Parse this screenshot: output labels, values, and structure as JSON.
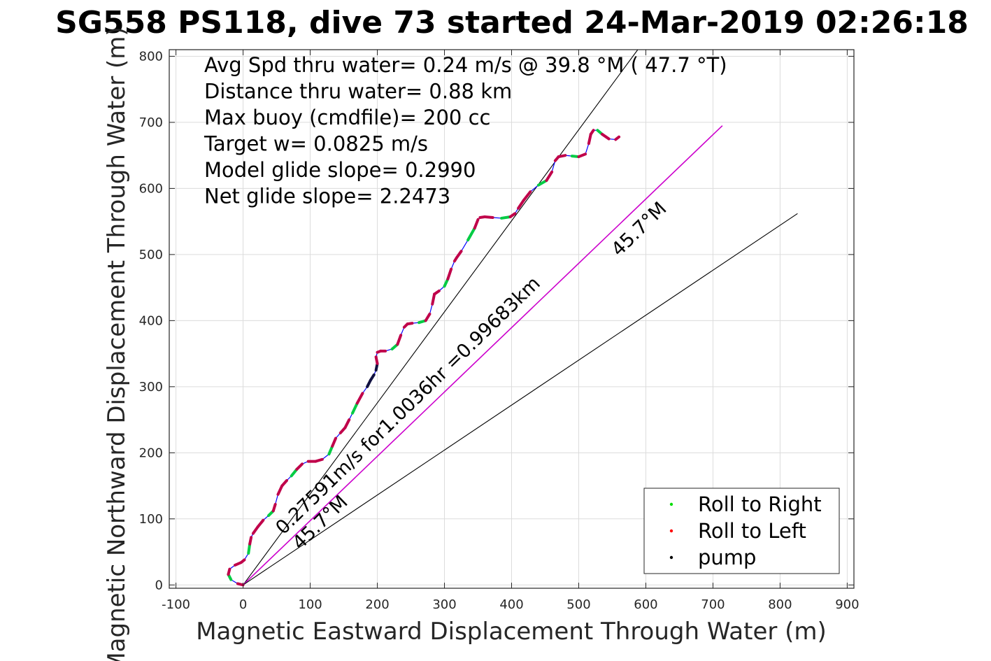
{
  "chart_data": {
    "type": "line",
    "title": "SG558 PS118, dive 73 started 24-Mar-2019 02:26:18",
    "xlabel": "Magnetic Eastward Displacement Through Water (m)",
    "ylabel": "Magnetic Northward Displacement Through Water (m)",
    "xlim": [
      -110,
      910
    ],
    "ylim": [
      -5,
      810
    ],
    "xticks": [
      -100,
      0,
      100,
      200,
      300,
      400,
      500,
      600,
      700,
      800,
      900
    ],
    "xtick_labels": [
      "-100",
      "0",
      "100",
      "200",
      "300",
      "400",
      "500",
      "600",
      "700",
      "800",
      "900"
    ],
    "yticks": [
      0,
      100,
      200,
      300,
      400,
      500,
      600,
      700,
      800
    ],
    "ytick_labels": [
      "0",
      "100",
      "200",
      "300",
      "400",
      "500",
      "600",
      "700",
      "800"
    ],
    "grid": true,
    "stats": [
      "Avg Spd thru water=  0.24 m/s @  39.8 °M ( 47.7 °T)",
      "Distance thru water=  0.88 km",
      "Max buoy (cmdfile)= 200 cc",
      "Target w= 0.0825 m/s",
      "Model glide slope= 0.2990",
      "Net glide slope= 2.2473"
    ],
    "reference_lines": [
      {
        "name": "upper",
        "x": [
          0,
          588
        ],
        "y": [
          0,
          810
        ],
        "color": "#000000"
      },
      {
        "name": "center",
        "x": [
          0,
          714
        ],
        "y": [
          0,
          695
        ],
        "color": "#cc00cc"
      },
      {
        "name": "lower",
        "x": [
          0,
          826
        ],
        "y": [
          0,
          562
        ],
        "color": "#000000"
      }
    ],
    "annotations": [
      {
        "text": "0.27591m/s for1.0036hr =0.99683km",
        "x": 60,
        "y": 75,
        "angle_deg": 44.2
      },
      {
        "text": "45.7°M",
        "x": 85,
        "y": 52,
        "angle_deg": 44.2
      },
      {
        "text": "45.7°M",
        "x": 560,
        "y": 496,
        "angle_deg": 44.2
      }
    ],
    "track": {
      "x": [
        0,
        -8,
        -18,
        -22,
        -20,
        -12,
        -3,
        2,
        8,
        10,
        12,
        15,
        22,
        30,
        38,
        45,
        48,
        52,
        58,
        65,
        72,
        80,
        88,
        97,
        108,
        118,
        128,
        133,
        138,
        145,
        152,
        158,
        163,
        170,
        178,
        185,
        190,
        195,
        198,
        200,
        198,
        200,
        205,
        212,
        222,
        230,
        235,
        240,
        245,
        252,
        262,
        272,
        278,
        282,
        285,
        292,
        300,
        305,
        310,
        315,
        318,
        325,
        335,
        345,
        350,
        353,
        360,
        372,
        385,
        398,
        405,
        410,
        418,
        428,
        440,
        452,
        460,
        465,
        470,
        480,
        490,
        500,
        510,
        515,
        518,
        522,
        528,
        535,
        545,
        555,
        560
      ],
      "y": [
        0,
        2,
        8,
        16,
        24,
        30,
        34,
        38,
        48,
        62,
        72,
        78,
        88,
        98,
        105,
        112,
        122,
        137,
        150,
        158,
        165,
        175,
        183,
        187,
        187,
        190,
        198,
        210,
        222,
        230,
        238,
        250,
        260,
        275,
        290,
        300,
        310,
        318,
        325,
        335,
        345,
        352,
        354,
        354,
        357,
        364,
        378,
        390,
        395,
        396,
        397,
        400,
        410,
        425,
        440,
        445,
        452,
        463,
        478,
        490,
        495,
        505,
        522,
        540,
        553,
        556,
        557,
        556,
        555,
        557,
        562,
        570,
        582,
        595,
        605,
        612,
        625,
        642,
        648,
        650,
        649,
        648,
        652,
        668,
        682,
        688,
        688,
        682,
        675,
        674,
        678
      ],
      "color": "#0000ff"
    },
    "legend": {
      "placement": "bottom-right",
      "entries": [
        {
          "label": "Roll to Right",
          "color": "#00dd00"
        },
        {
          "label": "Roll to Left",
          "color": "#ff0000"
        },
        {
          "label": "pump",
          "color": "#000000"
        }
      ]
    }
  }
}
